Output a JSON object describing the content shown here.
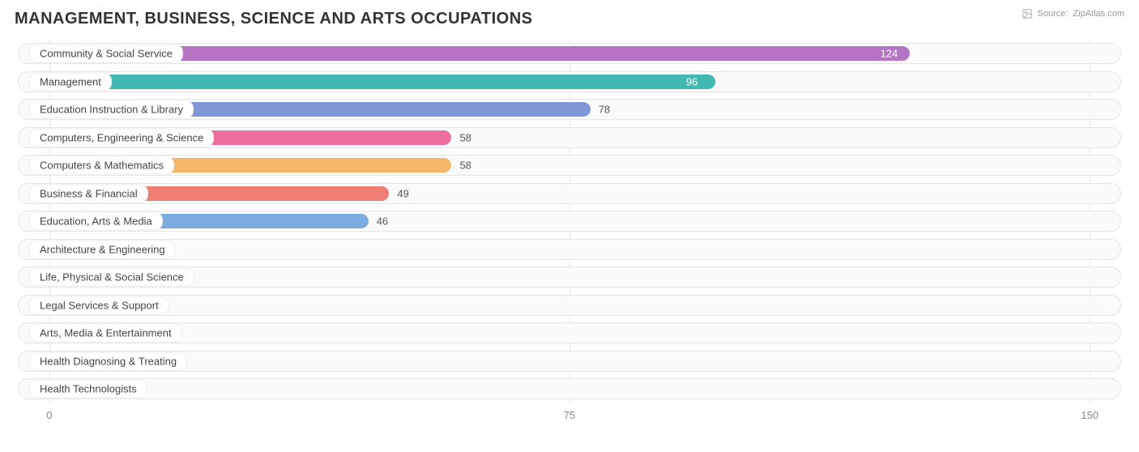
{
  "title": "MANAGEMENT, BUSINESS, SCIENCE AND ARTS OCCUPATIONS",
  "source": {
    "label": "Source:",
    "name": "ZipAtlas.com"
  },
  "chart": {
    "type": "bar-horizontal",
    "background_color": "#ffffff",
    "track_border_color": "#e5e5e5",
    "track_bg_color": "#fafafa",
    "grid_color": "#e6e6e6",
    "label_fontsize": 13,
    "title_fontsize": 20,
    "value_fontsize": 13,
    "xmin": -5,
    "xmax": 155,
    "xticks": [
      {
        "value": 0,
        "label": "0"
      },
      {
        "value": 75,
        "label": "75"
      },
      {
        "value": 150,
        "label": "150"
      }
    ],
    "bars": [
      {
        "label": "Community & Social Service",
        "value": 124,
        "color": "#b573c3",
        "value_text_on_bar": true,
        "value_text_color": "#ffffff"
      },
      {
        "label": "Management",
        "value": 96,
        "color": "#41b8b1",
        "value_text_on_bar": true,
        "value_text_color": "#ffffff"
      },
      {
        "label": "Education Instruction & Library",
        "value": 78,
        "color": "#8097d6",
        "value_text_on_bar": false,
        "value_text_color": "#555555"
      },
      {
        "label": "Computers, Engineering & Science",
        "value": 58,
        "color": "#ef6ea0",
        "value_text_on_bar": false,
        "value_text_color": "#555555"
      },
      {
        "label": "Computers & Mathematics",
        "value": 58,
        "color": "#f5b86b",
        "value_text_on_bar": false,
        "value_text_color": "#555555"
      },
      {
        "label": "Business & Financial",
        "value": 49,
        "color": "#ee7d74",
        "value_text_on_bar": false,
        "value_text_color": "#555555"
      },
      {
        "label": "Education, Arts & Media",
        "value": 46,
        "color": "#7bace0",
        "value_text_on_bar": false,
        "value_text_color": "#555555"
      },
      {
        "label": "Architecture & Engineering",
        "value": 0,
        "color": "#c6a6dc",
        "value_text_on_bar": false,
        "value_text_color": "#555555"
      },
      {
        "label": "Life, Physical & Social Science",
        "value": 0,
        "color": "#8fd9cf",
        "value_text_on_bar": false,
        "value_text_color": "#555555"
      },
      {
        "label": "Legal Services & Support",
        "value": 0,
        "color": "#c9c9c9",
        "value_text_on_bar": false,
        "value_text_color": "#555555"
      },
      {
        "label": "Arts, Media & Entertainment",
        "value": 0,
        "color": "#f19fc0",
        "value_text_on_bar": false,
        "value_text_color": "#555555"
      },
      {
        "label": "Health Diagnosing & Treating",
        "value": 0,
        "color": "#f7cf9a",
        "value_text_on_bar": false,
        "value_text_color": "#555555"
      },
      {
        "label": "Health Technologists",
        "value": 0,
        "color": "#f2a7a0",
        "value_text_on_bar": false,
        "value_text_color": "#555555"
      }
    ]
  }
}
